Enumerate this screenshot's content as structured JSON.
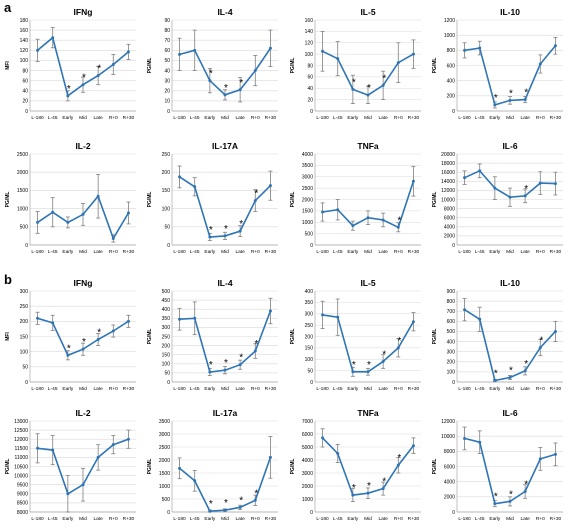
{
  "panels": [
    {
      "label": "a"
    },
    {
      "label": "b"
    }
  ],
  "x_categories": [
    "L-180",
    "L-45",
    "Early",
    "Mid",
    "Late",
    "R+0",
    "R+30"
  ],
  "colors": {
    "series": "#2E75B6",
    "error_bar": "#7F7F7F",
    "grid": "#D9D9D9",
    "text": "#000000"
  },
  "chart_data": [
    {
      "panel": "a",
      "type": "line",
      "title": "IFNg",
      "ylabel": "MFI",
      "ylim": [
        0,
        180
      ],
      "yticks": [
        0,
        20,
        40,
        60,
        80,
        100,
        120,
        140,
        160,
        180
      ],
      "values": [
        120,
        145,
        30,
        52,
        70,
        92,
        117
      ],
      "err": [
        22,
        20,
        10,
        15,
        18,
        20,
        15
      ],
      "star": [
        false,
        false,
        true,
        true,
        true,
        false,
        false
      ]
    },
    {
      "panel": "a",
      "type": "line",
      "title": "IL-4",
      "ylabel": "PG/ML",
      "ylim": [
        0,
        90
      ],
      "yticks": [
        0,
        10,
        20,
        30,
        40,
        50,
        60,
        70,
        80,
        90
      ],
      "values": [
        56,
        60,
        30,
        16,
        21,
        40,
        62
      ],
      "err": [
        16,
        20,
        12,
        5,
        12,
        15,
        18
      ],
      "star": [
        false,
        false,
        true,
        true,
        true,
        false,
        false
      ]
    },
    {
      "panel": "a",
      "type": "line",
      "title": "IL-5",
      "ylabel": "PG/ML",
      "ylim": [
        0,
        160
      ],
      "yticks": [
        0,
        20,
        40,
        60,
        80,
        100,
        120,
        140,
        160
      ],
      "values": [
        105,
        92,
        38,
        28,
        45,
        85,
        100
      ],
      "err": [
        35,
        30,
        25,
        15,
        25,
        35,
        25
      ],
      "star": [
        false,
        false,
        true,
        true,
        true,
        false,
        false
      ]
    },
    {
      "panel": "a",
      "type": "line",
      "title": "IL-10",
      "ylabel": "PG/ML",
      "ylim": [
        0,
        1200
      ],
      "yticks": [
        0,
        200,
        400,
        600,
        800,
        1000,
        1200
      ],
      "values": [
        800,
        830,
        80,
        140,
        150,
        620,
        860
      ],
      "err": [
        100,
        90,
        40,
        50,
        40,
        120,
        110
      ],
      "star": [
        false,
        false,
        true,
        true,
        true,
        false,
        false
      ]
    },
    {
      "panel": "a",
      "type": "line",
      "title": "IL-2",
      "ylabel": "PG/ML",
      "ylim": [
        0,
        2500
      ],
      "yticks": [
        0,
        500,
        1000,
        1500,
        2000,
        2500
      ],
      "values": [
        620,
        900,
        620,
        840,
        1340,
        180,
        880
      ],
      "err": [
        300,
        400,
        150,
        300,
        600,
        100,
        300
      ],
      "star": [
        false,
        false,
        false,
        false,
        false,
        false,
        false
      ]
    },
    {
      "panel": "a",
      "type": "line",
      "title": "IL-17A",
      "ylabel": "PG/ML",
      "ylim": [
        0,
        250
      ],
      "yticks": [
        0,
        50,
        100,
        150,
        200,
        250
      ],
      "values": [
        187,
        160,
        22,
        25,
        38,
        122,
        163
      ],
      "err": [
        30,
        25,
        10,
        10,
        15,
        30,
        40
      ],
      "star": [
        false,
        false,
        true,
        true,
        true,
        true,
        false
      ]
    },
    {
      "panel": "a",
      "type": "line",
      "title": "TNFa",
      "ylabel": "PG/ML",
      "ylim": [
        0,
        4000
      ],
      "yticks": [
        0,
        500,
        1000,
        1500,
        2000,
        2500,
        3000,
        3500,
        4000
      ],
      "values": [
        1450,
        1550,
        850,
        1200,
        1100,
        780,
        2800
      ],
      "err": [
        400,
        450,
        200,
        300,
        300,
        200,
        650
      ],
      "star": [
        false,
        false,
        false,
        false,
        false,
        true,
        false
      ]
    },
    {
      "panel": "a",
      "type": "line",
      "title": "IL-6",
      "ylabel": "PG/ML",
      "ylim": [
        0,
        20000
      ],
      "yticks": [
        0,
        2000,
        4000,
        6000,
        8000,
        10000,
        12000,
        14000,
        16000,
        18000,
        20000
      ],
      "values": [
        14800,
        16300,
        12500,
        10500,
        10800,
        13600,
        13500
      ],
      "err": [
        1500,
        1500,
        2500,
        2000,
        1500,
        2500,
        2500
      ],
      "star": [
        false,
        false,
        false,
        false,
        true,
        false,
        false
      ]
    },
    {
      "panel": "b",
      "type": "line",
      "title": "IFNg",
      "ylabel": "MFI",
      "ylim": [
        0,
        300
      ],
      "yticks": [
        0,
        50,
        100,
        150,
        200,
        250,
        300
      ],
      "values": [
        210,
        195,
        88,
        108,
        140,
        168,
        200
      ],
      "err": [
        20,
        25,
        15,
        20,
        20,
        20,
        20
      ],
      "star": [
        false,
        false,
        true,
        true,
        true,
        false,
        false
      ]
    },
    {
      "panel": "b",
      "type": "line",
      "title": "IL-4",
      "ylabel": "PG/ML",
      "ylim": [
        0,
        500
      ],
      "yticks": [
        0,
        50,
        100,
        150,
        200,
        250,
        300,
        350,
        400,
        450,
        500
      ],
      "values": [
        345,
        350,
        55,
        65,
        95,
        170,
        390
      ],
      "err": [
        60,
        90,
        20,
        20,
        25,
        40,
        70
      ],
      "star": [
        false,
        false,
        true,
        true,
        true,
        true,
        false
      ]
    },
    {
      "panel": "b",
      "type": "line",
      "title": "IL-5",
      "ylabel": "PG/ML",
      "ylim": [
        0,
        400
      ],
      "yticks": [
        0,
        50,
        100,
        150,
        200,
        250,
        300,
        350,
        400
      ],
      "values": [
        295,
        285,
        45,
        45,
        90,
        150,
        265
      ],
      "err": [
        60,
        80,
        20,
        15,
        30,
        40,
        40
      ],
      "star": [
        false,
        false,
        true,
        true,
        true,
        true,
        false
      ]
    },
    {
      "panel": "b",
      "type": "line",
      "title": "IL-10",
      "ylabel": "PG/ML",
      "ylim": [
        0,
        900
      ],
      "yticks": [
        0,
        100,
        200,
        300,
        400,
        500,
        600,
        700,
        800,
        900
      ],
      "values": [
        715,
        620,
        15,
        45,
        110,
        340,
        500
      ],
      "err": [
        110,
        120,
        10,
        20,
        40,
        80,
        100
      ],
      "star": [
        false,
        false,
        true,
        true,
        true,
        true,
        false
      ]
    },
    {
      "panel": "b",
      "type": "line",
      "title": "IL-2",
      "ylabel": "PG/ML",
      "ylim": [
        8000,
        13000
      ],
      "yticks": [
        8000,
        8500,
        9000,
        9500,
        10000,
        10500,
        11000,
        11500,
        12000,
        12500,
        13000
      ],
      "values": [
        11500,
        11400,
        9000,
        9500,
        11000,
        11700,
        12000
      ],
      "err": [
        800,
        800,
        1000,
        900,
        700,
        500,
        500
      ],
      "star": [
        false,
        false,
        false,
        false,
        false,
        false,
        false
      ]
    },
    {
      "panel": "b",
      "type": "line",
      "title": "IL-17a",
      "ylabel": "PG/ML",
      "ylim": [
        0,
        3500
      ],
      "yticks": [
        0,
        500,
        1000,
        1500,
        2000,
        2500,
        3000,
        3500
      ],
      "values": [
        1680,
        1200,
        30,
        70,
        180,
        450,
        2100
      ],
      "err": [
        400,
        400,
        50,
        50,
        80,
        200,
        800
      ],
      "star": [
        false,
        false,
        true,
        true,
        true,
        true,
        false
      ]
    },
    {
      "panel": "b",
      "type": "line",
      "title": "TNFa",
      "ylabel": "PG/ML",
      "ylim": [
        0,
        7000
      ],
      "yticks": [
        0,
        1000,
        2000,
        3000,
        4000,
        5000,
        6000,
        7000
      ],
      "values": [
        5700,
        4500,
        1300,
        1450,
        1800,
        3600,
        5100
      ],
      "err": [
        700,
        700,
        500,
        400,
        500,
        600,
        600
      ],
      "star": [
        false,
        false,
        true,
        true,
        true,
        true,
        false
      ]
    },
    {
      "panel": "b",
      "type": "line",
      "title": "IL-6",
      "ylabel": "PG/ML",
      "ylim": [
        0,
        12000
      ],
      "yticks": [
        0,
        2000,
        4000,
        6000,
        8000,
        10000,
        12000
      ],
      "values": [
        9700,
        9200,
        1100,
        1400,
        2700,
        7000,
        7600
      ],
      "err": [
        1500,
        1500,
        400,
        600,
        900,
        1500,
        1500
      ],
      "star": [
        false,
        false,
        true,
        true,
        true,
        false,
        false
      ]
    }
  ]
}
